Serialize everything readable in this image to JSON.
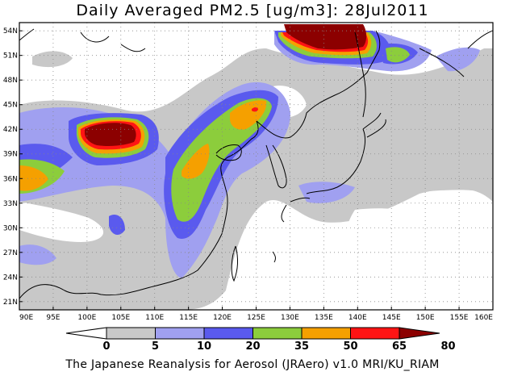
{
  "title": "Daily Averaged PM2.5 [ug/m3]: 28Jul2011",
  "footer": "The Japanese Reanalysis for Aerosol (JRAero) v1.0 MRI/KU_RIAM",
  "map": {
    "lon_range": [
      90,
      160
    ],
    "lat_range": [
      20,
      55
    ],
    "x_ticks": [
      "90E",
      "95E",
      "100E",
      "105E",
      "110E",
      "115E",
      "120E",
      "125E",
      "130E",
      "135E",
      "140E",
      "145E",
      "150E",
      "155E",
      "160E"
    ],
    "y_ticks": [
      "54N",
      "51N",
      "48N",
      "45N",
      "42N",
      "39N",
      "36N",
      "33N",
      "30N",
      "27N",
      "24N",
      "21N"
    ]
  },
  "colorbar": {
    "labels": [
      "0",
      "5",
      "10",
      "20",
      "35",
      "50",
      "65",
      "80"
    ],
    "colors": [
      "#ffffff",
      "#c8c8c8",
      "#a0a0f0",
      "#5a5aee",
      "#8ccd3c",
      "#f5a000",
      "#ff1414",
      "#8c0000"
    ]
  }
}
